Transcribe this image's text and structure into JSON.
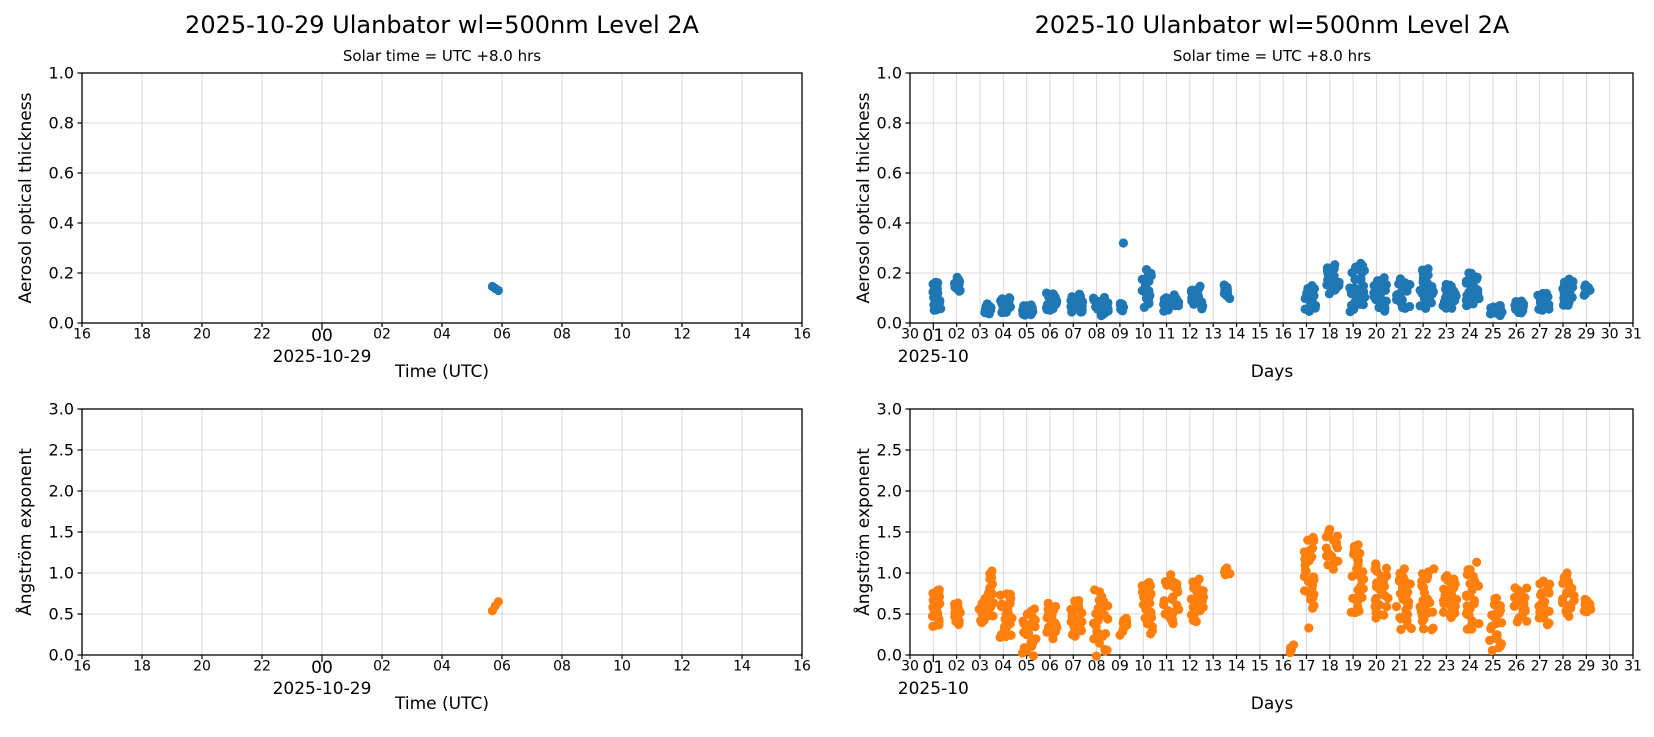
{
  "figure": {
    "background": "#ffffff",
    "grid_color": "#d9d9d9",
    "axis_color": "#000000",
    "aot_color": "#1f77b4",
    "angstrom_color": "#ff7f0e"
  },
  "chart_data": [
    {
      "name": "daily-aot",
      "type": "scatter",
      "title": "2025-10-29  Ulanbator  wl=500nm  Level 2A",
      "subtitle": "Solar time = UTC +8.0 hrs",
      "ylabel": "Aerosol optical thickness",
      "xlabel": "Time (UTC)",
      "offset_label": "2025-10-29",
      "offset_tick": 0,
      "color": "#1f77b4",
      "grid": true,
      "xlim": [
        -8,
        16
      ],
      "ylim": [
        0,
        1
      ],
      "xticks": [
        {
          "p": -8,
          "l": "16"
        },
        {
          "p": -6,
          "l": "18"
        },
        {
          "p": -4,
          "l": "20"
        },
        {
          "p": -2,
          "l": "22"
        },
        {
          "p": 0,
          "l": "00",
          "major": true
        },
        {
          "p": 2,
          "l": "02"
        },
        {
          "p": 4,
          "l": "04"
        },
        {
          "p": 6,
          "l": "06"
        },
        {
          "p": 8,
          "l": "08"
        },
        {
          "p": 10,
          "l": "10"
        },
        {
          "p": 12,
          "l": "12"
        },
        {
          "p": 14,
          "l": "14"
        },
        {
          "p": 16,
          "l": "16"
        }
      ],
      "yticks": [
        {
          "p": 0,
          "l": "0.0"
        },
        {
          "p": 0.2,
          "l": "0.2"
        },
        {
          "p": 0.4,
          "l": "0.4"
        },
        {
          "p": 0.6,
          "l": "0.6"
        },
        {
          "p": 0.8,
          "l": "0.8"
        },
        {
          "p": 1,
          "l": "1.0"
        }
      ],
      "points": [
        [
          5.68,
          0.146
        ],
        [
          5.78,
          0.138
        ],
        [
          5.88,
          0.13
        ]
      ],
      "clusters": []
    },
    {
      "name": "monthly-aot",
      "type": "scatter",
      "title": "2025-10  Ulanbator  wl=500nm  Level 2A",
      "subtitle": "Solar time = UTC +8.0 hrs",
      "ylabel": "Aerosol optical thickness",
      "xlabel": "Days",
      "offset_label": "2025-10",
      "offset_tick": 1,
      "color": "#1f77b4",
      "grid": true,
      "xlim": [
        0,
        31
      ],
      "ylim": [
        0,
        1
      ],
      "xticks": [
        {
          "p": 0,
          "l": "30"
        },
        {
          "p": 1,
          "l": "01",
          "major": true
        },
        {
          "p": 2,
          "l": "02"
        },
        {
          "p": 3,
          "l": "03"
        },
        {
          "p": 4,
          "l": "04"
        },
        {
          "p": 5,
          "l": "05"
        },
        {
          "p": 6,
          "l": "06"
        },
        {
          "p": 7,
          "l": "07"
        },
        {
          "p": 8,
          "l": "08"
        },
        {
          "p": 9,
          "l": "09"
        },
        {
          "p": 10,
          "l": "10"
        },
        {
          "p": 11,
          "l": "11"
        },
        {
          "p": 12,
          "l": "12"
        },
        {
          "p": 13,
          "l": "13"
        },
        {
          "p": 14,
          "l": "14"
        },
        {
          "p": 15,
          "l": "15"
        },
        {
          "p": 16,
          "l": "16"
        },
        {
          "p": 17,
          "l": "17"
        },
        {
          "p": 18,
          "l": "18"
        },
        {
          "p": 19,
          "l": "19"
        },
        {
          "p": 20,
          "l": "20"
        },
        {
          "p": 21,
          "l": "21"
        },
        {
          "p": 22,
          "l": "22"
        },
        {
          "p": 23,
          "l": "23"
        },
        {
          "p": 24,
          "l": "24"
        },
        {
          "p": 25,
          "l": "25"
        },
        {
          "p": 26,
          "l": "26"
        },
        {
          "p": 27,
          "l": "27"
        },
        {
          "p": 28,
          "l": "28"
        },
        {
          "p": 29,
          "l": "29"
        },
        {
          "p": 30,
          "l": "30"
        },
        {
          "p": 31,
          "l": "31"
        }
      ],
      "yticks": [
        {
          "p": 0,
          "l": "0.0"
        },
        {
          "p": 0.2,
          "l": "0.2"
        },
        {
          "p": 0.4,
          "l": "0.4"
        },
        {
          "p": 0.6,
          "l": "0.6"
        },
        {
          "p": 0.8,
          "l": "0.8"
        },
        {
          "p": 1,
          "l": "1.0"
        }
      ],
      "points": [
        [
          9.15,
          0.32
        ]
      ],
      "clusters": [
        [
          0.95,
          1.2,
          0.1,
          0.165,
          16
        ],
        [
          1.02,
          1.32,
          0.05,
          0.09,
          10
        ],
        [
          1.9,
          2.15,
          0.125,
          0.18,
          13
        ],
        [
          3.2,
          3.5,
          0.035,
          0.075,
          14
        ],
        [
          3.85,
          4.35,
          0.04,
          0.1,
          22
        ],
        [
          4.8,
          5.3,
          0.03,
          0.07,
          22
        ],
        [
          5.85,
          6.3,
          0.05,
          0.12,
          20
        ],
        [
          6.85,
          7.4,
          0.04,
          0.115,
          22
        ],
        [
          7.85,
          8.5,
          0.03,
          0.1,
          22
        ],
        [
          9.0,
          9.25,
          0.05,
          0.08,
          7
        ],
        [
          9.95,
          10.35,
          0.07,
          0.21,
          20
        ],
        [
          10.85,
          11.55,
          0.05,
          0.11,
          20
        ],
        [
          12.05,
          12.6,
          0.06,
          0.145,
          18
        ],
        [
          13.45,
          13.85,
          0.1,
          0.15,
          9
        ],
        [
          16.9,
          17.4,
          0.05,
          0.15,
          22
        ],
        [
          17.85,
          18.4,
          0.12,
          0.23,
          22
        ],
        [
          18.85,
          19.5,
          0.05,
          0.24,
          30
        ],
        [
          19.85,
          20.45,
          0.05,
          0.18,
          26
        ],
        [
          20.85,
          21.45,
          0.06,
          0.17,
          24
        ],
        [
          21.85,
          22.45,
          0.06,
          0.21,
          26
        ],
        [
          22.85,
          23.45,
          0.06,
          0.16,
          24
        ],
        [
          23.85,
          24.4,
          0.07,
          0.2,
          24
        ],
        [
          24.85,
          25.4,
          0.03,
          0.07,
          18
        ],
        [
          25.9,
          26.4,
          0.04,
          0.09,
          16
        ],
        [
          26.9,
          27.4,
          0.05,
          0.12,
          18
        ],
        [
          27.9,
          28.45,
          0.07,
          0.17,
          20
        ],
        [
          28.9,
          29.2,
          0.11,
          0.15,
          9
        ]
      ]
    },
    {
      "name": "daily-angstrom",
      "type": "scatter",
      "ylabel": "Ångström exponent",
      "xlabel": "Time (UTC)",
      "offset_label": "2025-10-29",
      "offset_tick": 0,
      "color": "#ff7f0e",
      "grid": true,
      "xlim": [
        -8,
        16
      ],
      "ylim": [
        0,
        3
      ],
      "xticks": [
        {
          "p": -8,
          "l": "16"
        },
        {
          "p": -6,
          "l": "18"
        },
        {
          "p": -4,
          "l": "20"
        },
        {
          "p": -2,
          "l": "22"
        },
        {
          "p": 0,
          "l": "00",
          "major": true
        },
        {
          "p": 2,
          "l": "02"
        },
        {
          "p": 4,
          "l": "04"
        },
        {
          "p": 6,
          "l": "06"
        },
        {
          "p": 8,
          "l": "08"
        },
        {
          "p": 10,
          "l": "10"
        },
        {
          "p": 12,
          "l": "12"
        },
        {
          "p": 14,
          "l": "14"
        },
        {
          "p": 16,
          "l": "16"
        }
      ],
      "yticks": [
        {
          "p": 0,
          "l": "0.0"
        },
        {
          "p": 0.5,
          "l": "0.5"
        },
        {
          "p": 1,
          "l": "1.0"
        },
        {
          "p": 1.5,
          "l": "1.5"
        },
        {
          "p": 2,
          "l": "2.0"
        },
        {
          "p": 2.5,
          "l": "2.5"
        },
        {
          "p": 3,
          "l": "3.0"
        }
      ],
      "points": [
        [
          5.68,
          0.54
        ],
        [
          5.78,
          0.6
        ],
        [
          5.88,
          0.65
        ]
      ],
      "clusters": []
    },
    {
      "name": "monthly-angstrom",
      "type": "scatter",
      "ylabel": "Ångström exponent",
      "xlabel": "Days",
      "offset_label": "2025-10",
      "offset_tick": 1,
      "color": "#ff7f0e",
      "grid": true,
      "xlim": [
        0,
        31
      ],
      "ylim": [
        0,
        3
      ],
      "xticks": [
        {
          "p": 0,
          "l": "30"
        },
        {
          "p": 1,
          "l": "01",
          "major": true
        },
        {
          "p": 2,
          "l": "02"
        },
        {
          "p": 3,
          "l": "03"
        },
        {
          "p": 4,
          "l": "04"
        },
        {
          "p": 5,
          "l": "05"
        },
        {
          "p": 6,
          "l": "06"
        },
        {
          "p": 7,
          "l": "07"
        },
        {
          "p": 8,
          "l": "08"
        },
        {
          "p": 9,
          "l": "09"
        },
        {
          "p": 10,
          "l": "10"
        },
        {
          "p": 11,
          "l": "11"
        },
        {
          "p": 12,
          "l": "12"
        },
        {
          "p": 13,
          "l": "13"
        },
        {
          "p": 14,
          "l": "14"
        },
        {
          "p": 15,
          "l": "15"
        },
        {
          "p": 16,
          "l": "16"
        },
        {
          "p": 17,
          "l": "17"
        },
        {
          "p": 18,
          "l": "18"
        },
        {
          "p": 19,
          "l": "19"
        },
        {
          "p": 20,
          "l": "20"
        },
        {
          "p": 21,
          "l": "21"
        },
        {
          "p": 22,
          "l": "22"
        },
        {
          "p": 23,
          "l": "23"
        },
        {
          "p": 24,
          "l": "24"
        },
        {
          "p": 25,
          "l": "25"
        },
        {
          "p": 26,
          "l": "26"
        },
        {
          "p": 27,
          "l": "27"
        },
        {
          "p": 28,
          "l": "28"
        },
        {
          "p": 29,
          "l": "29"
        },
        {
          "p": 30,
          "l": "30"
        },
        {
          "p": 31,
          "l": "31"
        }
      ],
      "yticks": [
        {
          "p": 0,
          "l": "0.0"
        },
        {
          "p": 0.5,
          "l": "0.5"
        },
        {
          "p": 1,
          "l": "1.0"
        },
        {
          "p": 1.5,
          "l": "1.5"
        },
        {
          "p": 2,
          "l": "2.0"
        },
        {
          "p": 2.5,
          "l": "2.5"
        },
        {
          "p": 3,
          "l": "3.0"
        }
      ],
      "points": [
        [
          17.1,
          0.33
        ]
      ],
      "clusters": [
        [
          0.95,
          1.3,
          0.35,
          0.8,
          26
        ],
        [
          1.9,
          2.2,
          0.36,
          0.63,
          14
        ],
        [
          2.95,
          3.25,
          0.38,
          0.68,
          14
        ],
        [
          3.35,
          3.6,
          0.45,
          1.03,
          18
        ],
        [
          3.85,
          4.45,
          0.18,
          0.78,
          26
        ],
        [
          4.8,
          5.4,
          0.02,
          0.55,
          26
        ],
        [
          5.85,
          6.3,
          0.22,
          0.62,
          20
        ],
        [
          6.85,
          7.4,
          0.25,
          0.68,
          22
        ],
        [
          7.85,
          8.5,
          0.02,
          0.78,
          26
        ],
        [
          9.0,
          9.3,
          0.25,
          0.46,
          9
        ],
        [
          9.95,
          10.4,
          0.28,
          0.92,
          22
        ],
        [
          10.85,
          11.55,
          0.4,
          0.95,
          24
        ],
        [
          12.05,
          12.6,
          0.42,
          0.92,
          22
        ],
        [
          13.45,
          13.8,
          0.98,
          1.06,
          8
        ],
        [
          16.3,
          16.45,
          0.03,
          0.12,
          4
        ],
        [
          16.9,
          17.35,
          0.58,
          1.42,
          26
        ],
        [
          17.85,
          18.35,
          1.05,
          1.55,
          20
        ],
        [
          18.85,
          19.45,
          0.52,
          1.35,
          30
        ],
        [
          19.85,
          20.5,
          0.45,
          1.12,
          28
        ],
        [
          20.85,
          21.5,
          0.32,
          1.02,
          26
        ],
        [
          21.85,
          22.5,
          0.3,
          1.05,
          26
        ],
        [
          22.85,
          23.45,
          0.45,
          0.97,
          24
        ],
        [
          23.85,
          24.45,
          0.3,
          1.1,
          26
        ],
        [
          24.85,
          25.45,
          0.04,
          0.68,
          22
        ],
        [
          25.9,
          26.45,
          0.4,
          0.82,
          20
        ],
        [
          26.9,
          27.45,
          0.35,
          0.92,
          22
        ],
        [
          27.9,
          28.5,
          0.45,
          1.0,
          22
        ],
        [
          28.9,
          29.2,
          0.52,
          0.68,
          10
        ]
      ]
    }
  ]
}
